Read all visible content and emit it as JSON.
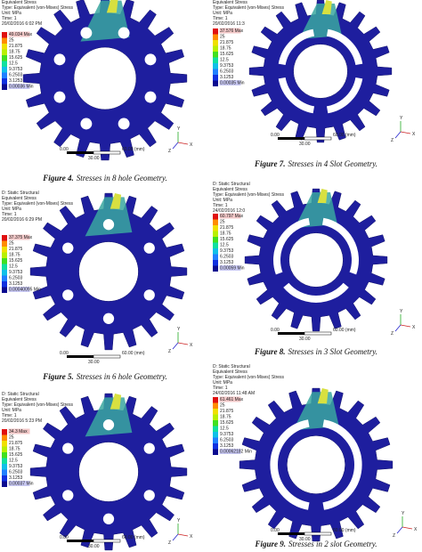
{
  "axis_labels": {
    "x": "X",
    "y": "Y",
    "z": "Z"
  },
  "panels": [
    {
      "header": [
        "Equivalent Stress",
        "Type: Equivalent (von-Mises) Stress",
        "Unit: MPa",
        "Time: 1",
        "20/02/2016 6:02 PM"
      ],
      "legend": [
        "49.034 Max",
        "25",
        "21.875",
        "18.75",
        "15.625",
        "12.5",
        "9.3753",
        "6.2503",
        "3.1253",
        "0.00036 Min"
      ],
      "scale": {
        "left": "0.00",
        "right": "60.00 (mm)",
        "mid": "30.00"
      },
      "caption": {
        "label": "Figure 4.",
        "text": "Stresses in 8 hole Geometry."
      }
    },
    {
      "header": [
        "Equivalent Stress",
        "Type: Equivalent (von-Mises) Stress",
        "Unit: MPa",
        "Time: 1",
        "20/02/2016 11:3"
      ],
      "legend": [
        "37.576 Max",
        "25",
        "21.875",
        "18.75",
        "15.625",
        "12.5",
        "9.3753",
        "6.2503",
        "3.1253",
        "0.00035 Min"
      ],
      "scale": {
        "left": "0.00",
        "right": "60.00 (mm)",
        "mid": "30.00"
      },
      "caption": {
        "label": "Figure 7.",
        "text": "Stresses in 4 Slot Geometry."
      }
    },
    {
      "header": [
        "D: Static Structural",
        "Equivalent Stress",
        "Type: Equivalent (von-Mises) Stress",
        "Unit: MPa",
        "Time: 1",
        "20/02/2016 6:29 PM"
      ],
      "legend": [
        "37.375 Max",
        "25",
        "21.875",
        "18.75",
        "15.625",
        "12.5",
        "9.3753",
        "6.2503",
        "3.1253",
        "0.00040095 Min"
      ],
      "scale": {
        "left": "0.00",
        "right": "60.00 (mm)",
        "mid": "30.00"
      },
      "caption": {
        "label": "Figure 5.",
        "text": "Stresses in 6 hole Geometry."
      }
    },
    {
      "header": [
        "D: Static Structural",
        "Equivalent Stress",
        "Type: Equivalent (von-Mises) Stress",
        "Unit: MPa",
        "Time: 1",
        "24/02/2016 12:0"
      ],
      "legend": [
        "60.797 Max",
        "25",
        "21.875",
        "18.75",
        "15.625",
        "12.5",
        "9.3753",
        "6.2503",
        "3.1253",
        "0.00059 Min"
      ],
      "scale": {
        "left": "0.00",
        "right": "60.00 (mm)",
        "mid": "30.00"
      },
      "caption": {
        "label": "Figure 8.",
        "text": "Stresses in 3 Slot Geometry."
      }
    },
    {
      "header": [
        "D: Static Structural",
        "Equivalent Stress",
        "Type: Equivalent (von-Mises) Stress",
        "Unit: MPa",
        "Time: 1",
        "20/02/2016 5:23 PM"
      ],
      "legend": [
        "34.3 Max",
        "25",
        "21.875",
        "18.75",
        "15.625",
        "12.5",
        "9.3753",
        "6.2503",
        "3.1253",
        "0.00037 Min"
      ],
      "scale": {
        "left": "0.00",
        "right": "60.00 (mm)",
        "mid": "30.00"
      }
    },
    {
      "header": [
        "D: Static Structural",
        "Equivalent Stress",
        "Type: Equivalent (von-Mises) Stress",
        "Unit: MPa",
        "Time: 1",
        "24/02/2016 11:48 AM"
      ],
      "legend": [
        "61.461 Max",
        "25",
        "21.875",
        "18.75",
        "15.625",
        "12.5",
        "9.3753",
        "6.2503",
        "3.1253",
        "0.00062182 Min"
      ],
      "scale": {
        "left": "0.00",
        "right": "60.00 (mm)",
        "mid": "30.00"
      },
      "caption": {
        "label": "Figure 9.",
        "text": "Stresses in 2 slot Geometry."
      }
    }
  ]
}
